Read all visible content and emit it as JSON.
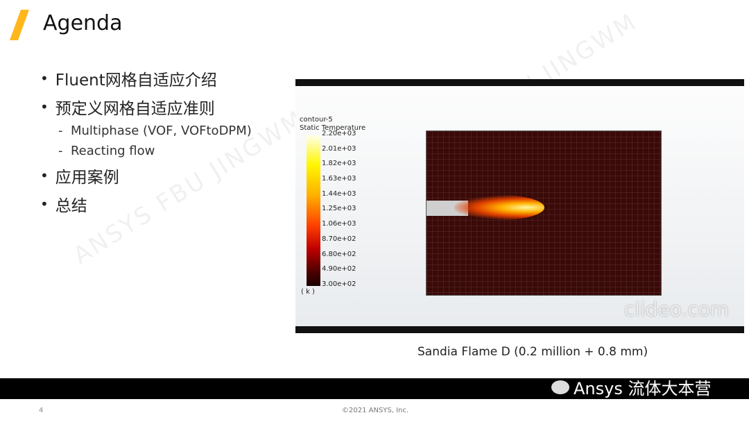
{
  "slide": {
    "title": "Agenda",
    "page_number": "4",
    "copyright": "©2021 ANSYS, Inc.",
    "accent_color": "#ffb71b"
  },
  "agenda": [
    {
      "label": "Fluent网格自适应介绍"
    },
    {
      "label": "预定义网格自适应准则",
      "sub": [
        "Multiphase (VOF, VOFtoDPM)",
        "Reacting flow"
      ]
    },
    {
      "label": "应用案例"
    },
    {
      "label": "总结"
    }
  ],
  "video": {
    "contour_name": "contour-5",
    "quantity": "Static Temperature",
    "unit": "( k )",
    "legend_ticks": [
      "2.20e+03",
      "2.01e+03",
      "1.82e+03",
      "1.63e+03",
      "1.44e+03",
      "1.25e+03",
      "1.06e+03",
      "8.70e+02",
      "6.80e+02",
      "4.90e+02",
      "3.00e+02"
    ],
    "watermark": "clideo.com",
    "caption": "Sandia Flame D (0.2 million + 0.8 mm)"
  },
  "watermarks": {
    "diagonal": "ANSYS FBU JINGWM",
    "channel": "Ansys 流体大本营"
  }
}
